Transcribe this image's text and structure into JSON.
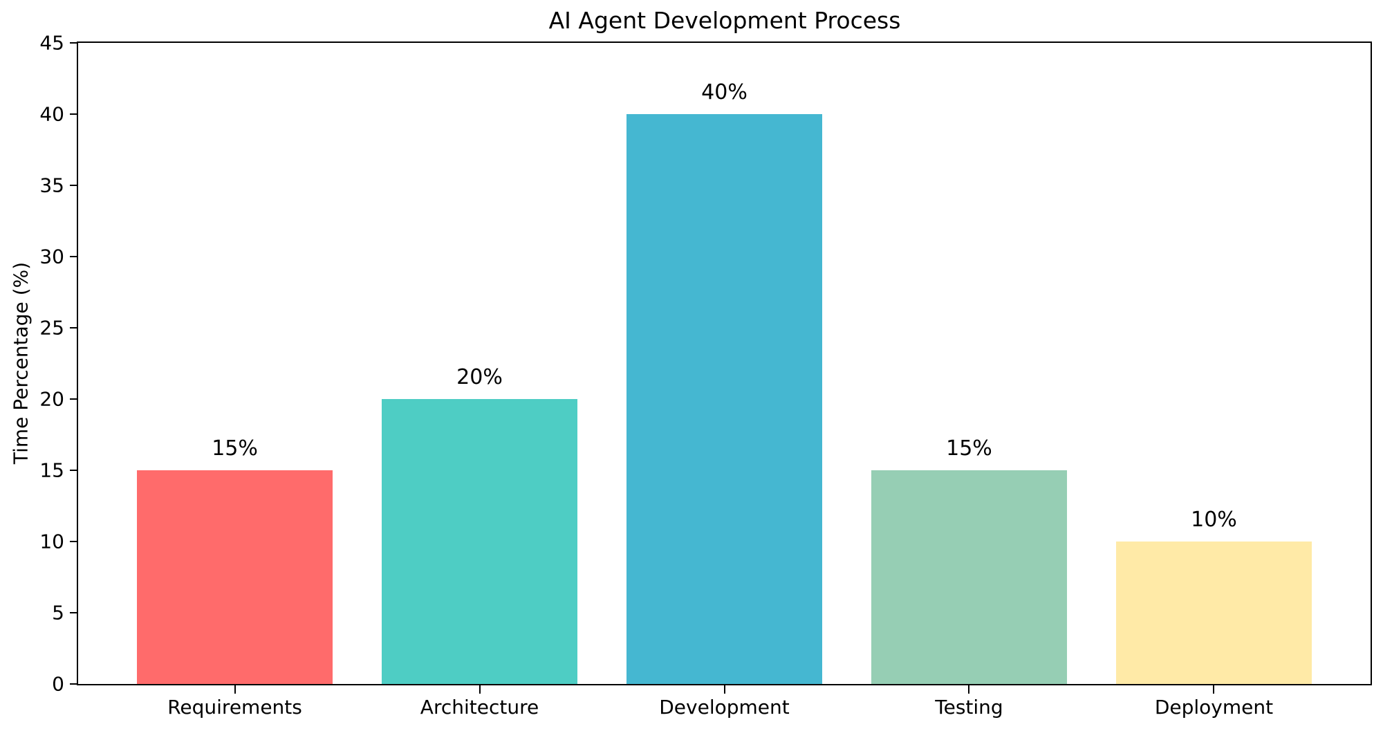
{
  "chart_data": {
    "type": "bar",
    "title": "AI Agent Development Process",
    "categories": [
      "Requirements",
      "Architecture",
      "Development",
      "Testing",
      "Deployment"
    ],
    "values": [
      15,
      20,
      40,
      15,
      10
    ],
    "bar_labels": [
      "15%",
      "20%",
      "40%",
      "15%",
      "10%"
    ],
    "bar_colors": [
      "#FF6B6B",
      "#4ECDC4",
      "#45B7D1",
      "#96CEB4",
      "#FFEAA7"
    ],
    "xlabel": "",
    "ylabel": "Time Percentage (%)",
    "ylim": [
      0,
      45
    ],
    "yticks": [
      0,
      5,
      10,
      15,
      20,
      25,
      30,
      35,
      40,
      45
    ],
    "grid": false,
    "legend": null,
    "spine_color": "#000000",
    "background_color": "#ffffff"
  }
}
